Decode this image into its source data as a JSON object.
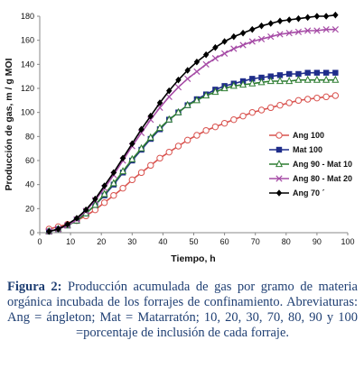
{
  "chart_data": {
    "type": "line",
    "xlabel": "Tiempo, h",
    "ylabel": "Producción de gas, m / g MOI",
    "xlim": [
      0,
      100
    ],
    "ylim": [
      0,
      180
    ],
    "xticks": [
      0,
      10,
      20,
      30,
      40,
      50,
      60,
      70,
      80,
      90,
      100
    ],
    "yticks": [
      0,
      20,
      40,
      60,
      80,
      100,
      120,
      140,
      160,
      180
    ],
    "grid": false,
    "legend_position": "right",
    "x": [
      3,
      6,
      9,
      12,
      15,
      18,
      21,
      24,
      27,
      30,
      33,
      36,
      39,
      42,
      45,
      48,
      51,
      54,
      57,
      60,
      63,
      66,
      69,
      72,
      75,
      78,
      81,
      84,
      87,
      90,
      93,
      96
    ],
    "series": [
      {
        "name": "Ang 100",
        "color": "#d9534f",
        "marker": "circle-open",
        "values": [
          3,
          5,
          7,
          10,
          14,
          19,
          25,
          31,
          37,
          44,
          50,
          56,
          62,
          67,
          72,
          77,
          81,
          85,
          88,
          91,
          94,
          97,
          100,
          102,
          104,
          106,
          108,
          110,
          111,
          112,
          113,
          114
        ]
      },
      {
        "name": "Mat 100",
        "color": "#1f2d8a",
        "marker": "square-filled",
        "values": [
          1,
          3,
          6,
          10,
          16,
          23,
          31,
          40,
          50,
          60,
          69,
          78,
          86,
          94,
          100,
          106,
          111,
          115,
          119,
          122,
          124,
          126,
          128,
          129,
          130,
          131,
          132,
          132,
          133,
          133,
          133,
          133
        ]
      },
      {
        "name": "Ang 90 - Mat 10",
        "color": "#2e7d32",
        "marker": "triangle-open",
        "values": [
          1,
          3,
          6,
          10,
          16,
          23,
          32,
          41,
          51,
          61,
          70,
          79,
          87,
          94,
          100,
          106,
          110,
          114,
          117,
          120,
          122,
          123,
          124,
          125,
          126,
          126,
          126,
          127,
          127,
          127,
          127,
          127
        ]
      },
      {
        "name": "Ang 80 - Mat 20",
        "color": "#a64ca6",
        "marker": "x",
        "values": [
          1,
          3,
          6,
          11,
          18,
          27,
          37,
          48,
          60,
          72,
          83,
          94,
          104,
          113,
          121,
          128,
          134,
          140,
          145,
          149,
          153,
          156,
          159,
          161,
          163,
          165,
          166,
          167,
          168,
          168,
          169,
          169
        ]
      },
      {
        "name": "Ang 70 ´",
        "color": "#000000",
        "marker": "diamond-filled",
        "values": [
          1,
          3,
          7,
          12,
          19,
          28,
          39,
          50,
          62,
          74,
          86,
          97,
          108,
          118,
          127,
          135,
          142,
          148,
          154,
          159,
          163,
          166,
          169,
          172,
          174,
          176,
          177,
          178,
          179,
          180,
          180,
          181
        ]
      }
    ]
  },
  "caption": {
    "label": "Figura 2:",
    "text": " Producción acumulada de gas por gramo de materia orgánica incubada de los forrajes de confinamiento. Abreviaturas: Ang = ángleton; Mat = Matarratón; 10, 20, 30, 70, 80, 90 y 100 =porcentaje de inclusión de cada forraje."
  }
}
